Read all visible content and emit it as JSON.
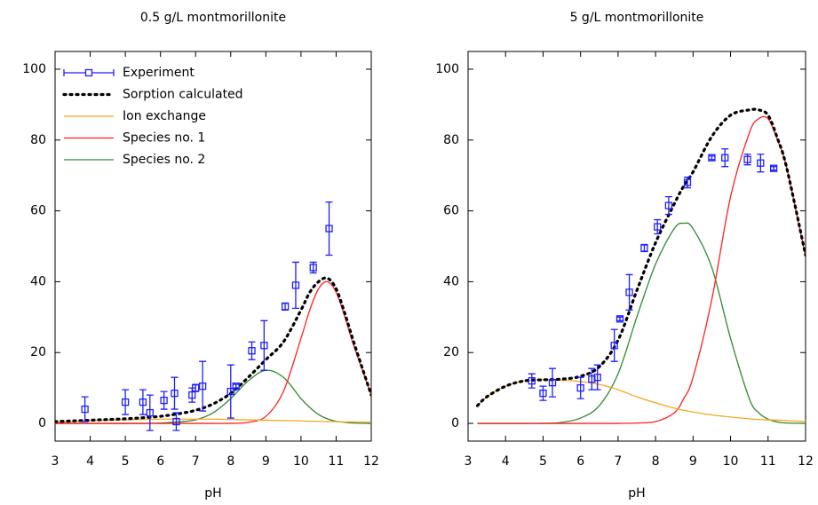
{
  "chart_data": [
    {
      "type": "line",
      "title": "0.5 g/L montmorillonite",
      "x_label": "pH",
      "xlim": [
        3,
        12
      ],
      "xticks": [
        3,
        4,
        5,
        6,
        7,
        8,
        9,
        10,
        11,
        12
      ],
      "ylim": [
        -5,
        105
      ],
      "yticks": [
        0,
        20,
        40,
        60,
        80,
        100
      ],
      "legend": "upper left",
      "x": [
        3,
        3.5,
        4,
        4.5,
        5,
        5.5,
        6,
        6.5,
        7,
        7.5,
        8,
        8.5,
        9,
        9.5,
        10,
        10.25,
        10.5,
        10.75,
        11,
        11.25,
        11.5,
        12
      ],
      "series": [
        {
          "name": "Experiment",
          "color": "#1f1fff",
          "style": "points",
          "marker": "square",
          "x": [
            3.85,
            5.0,
            5.5,
            5.7,
            6.1,
            6.4,
            6.45,
            6.9,
            7.0,
            7.2,
            8.0,
            8.15,
            8.6,
            8.95,
            9.55,
            9.85,
            10.35,
            10.8
          ],
          "values": [
            4,
            6,
            6,
            3,
            6.5,
            8.5,
            0.5,
            8,
            10,
            10.5,
            9,
            10.5,
            20.5,
            22,
            33,
            39,
            44,
            55
          ],
          "errors": [
            3.5,
            3.5,
            3.5,
            5,
            2.5,
            4.5,
            2.5,
            2,
            1,
            7,
            7.5,
            0.5,
            2.5,
            7,
            1,
            6.5,
            1.5,
            7.5
          ]
        },
        {
          "name": "Sorption calculated",
          "color": "#000000",
          "style": "dotted",
          "values": [
            0.5,
            0.7,
            0.9,
            1.1,
            1.3,
            1.6,
            2,
            2.7,
            3.7,
            5.5,
            8.5,
            13,
            18,
            23,
            32,
            37,
            40,
            41,
            38,
            31,
            23,
            8
          ]
        },
        {
          "name": "Ion exchange",
          "color": "#f5a623",
          "style": "solid",
          "values": [
            0.3,
            0.5,
            0.7,
            0.9,
            1.0,
            1.1,
            1.2,
            1.2,
            1.2,
            1.2,
            1.1,
            1.0,
            0.9,
            0.8,
            0.7,
            0.6,
            0.6,
            0.5,
            0.5,
            0.4,
            0.4,
            0.3
          ]
        },
        {
          "name": "Species no. 1",
          "color": "#ff2020",
          "style": "solid",
          "values": [
            0,
            0,
            0,
            0,
            0,
            0,
            0,
            0,
            0,
            0,
            0,
            0.3,
            2,
            9,
            24,
            32,
            38,
            40,
            37,
            30,
            22,
            8
          ]
        },
        {
          "name": "Species no. 2",
          "color": "#2e8b2e",
          "style": "solid",
          "values": [
            0,
            0,
            0,
            0,
            0,
            0,
            0.1,
            0.4,
            1,
            3,
            7,
            12,
            15,
            13,
            7,
            4.5,
            2.5,
            1.3,
            0.6,
            0.3,
            0.1,
            0
          ]
        }
      ]
    },
    {
      "type": "line",
      "title": "5 g/L montmorillonite",
      "x_label": "pH",
      "xlim": [
        3,
        12
      ],
      "xticks": [
        3,
        4,
        5,
        6,
        7,
        8,
        9,
        10,
        11,
        12
      ],
      "ylim": [
        -5,
        105
      ],
      "yticks": [
        0,
        20,
        40,
        60,
        80,
        100
      ],
      "x": [
        3.25,
        3.5,
        4,
        4.5,
        5,
        5.5,
        6,
        6.5,
        7,
        7.5,
        8,
        8.5,
        8.75,
        9,
        9.5,
        10,
        10.5,
        10.75,
        11,
        11.25,
        11.5,
        12
      ],
      "series": [
        {
          "name": "Experiment",
          "color": "#1f1fff",
          "style": "points",
          "marker": "square",
          "x": [
            4.7,
            5.0,
            5.25,
            6.0,
            6.3,
            6.45,
            6.9,
            7.05,
            7.3,
            7.7,
            8.05,
            8.35,
            8.85,
            9.5,
            9.85,
            10.45,
            10.8,
            11.15
          ],
          "values": [
            12,
            8.5,
            11.5,
            10,
            12.5,
            13,
            22,
            29.5,
            37,
            49.5,
            55.5,
            61.5,
            68,
            75,
            75,
            74.5,
            73.5,
            72
          ],
          "errors": [
            2,
            2,
            4,
            3,
            3,
            3.5,
            4.5,
            0.5,
            5,
            1,
            2,
            2.5,
            1.5,
            0.5,
            2.5,
            1.5,
            2.5,
            0.5
          ]
        },
        {
          "name": "Sorption calculated",
          "color": "#000000",
          "style": "dotted",
          "values": [
            5,
            7.5,
            10.5,
            12,
            12.3,
            12.5,
            13.3,
            16,
            23.5,
            37.5,
            51,
            62,
            67,
            71,
            81,
            87,
            88.5,
            88.5,
            87,
            80.5,
            72,
            47.5
          ]
        },
        {
          "name": "Ion exchange",
          "color": "#f5a623",
          "style": "solid",
          "values": [
            5,
            7.5,
            10.5,
            12,
            12.3,
            12.2,
            11.8,
            11,
            9.5,
            7.5,
            5.8,
            4.3,
            3.7,
            3.2,
            2.4,
            1.8,
            1.3,
            1.1,
            1,
            0.9,
            0.8,
            0.5
          ]
        },
        {
          "name": "Species no. 1",
          "color": "#ff2020",
          "style": "solid",
          "values": [
            0,
            0,
            0,
            0,
            0,
            0,
            0,
            0,
            0,
            0.1,
            0.5,
            3,
            7,
            13,
            35,
            64,
            82,
            86,
            86,
            80,
            72,
            47
          ]
        },
        {
          "name": "Species no. 2",
          "color": "#2e8b2e",
          "style": "solid",
          "values": [
            0,
            0,
            0,
            0,
            0,
            0.3,
            1.5,
            5,
            14,
            30,
            45,
            55,
            56.5,
            55,
            44,
            24,
            7,
            3,
            1.2,
            0.4,
            0.1,
            0
          ]
        }
      ]
    }
  ]
}
